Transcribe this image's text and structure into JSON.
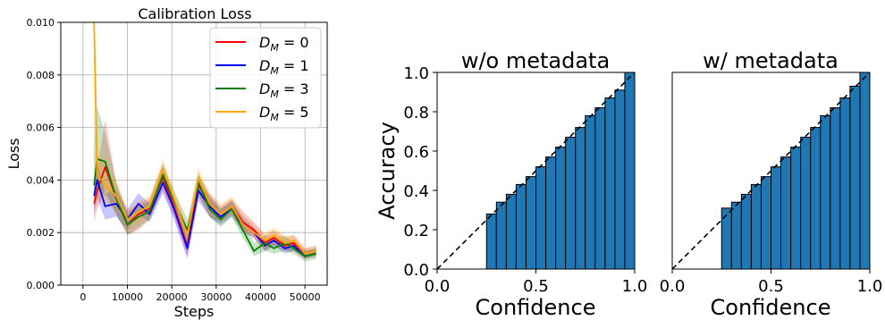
{
  "chart_data": [
    {
      "type": "line",
      "title": "Calibration Loss",
      "xlabel": "Steps",
      "ylabel": "Loss",
      "xlim": [
        -5000,
        55000
      ],
      "ylim": [
        0,
        0.01
      ],
      "xticks": [
        0,
        10000,
        20000,
        30000,
        40000,
        50000
      ],
      "xtick_labels": [
        "0",
        "10000",
        "20000",
        "30000",
        "40000",
        "50000"
      ],
      "yticks": [
        0,
        0.002,
        0.004,
        0.006,
        0.008,
        0.01
      ],
      "ytick_labels": [
        "0.000",
        "0.002",
        "0.004",
        "0.006",
        "0.008",
        "0.010"
      ],
      "grid": true,
      "legend_position": "top-right",
      "x": [
        2500,
        3200,
        5000,
        7500,
        10000,
        12500,
        15000,
        18000,
        20500,
        23500,
        26000,
        28500,
        31000,
        33500,
        36000,
        38500,
        41000,
        43000,
        45500,
        47500,
        50000,
        52500
      ],
      "series": [
        {
          "name": "D_M=0",
          "legend_label": "D_M = 0",
          "color": "#ff0000",
          "values": [
            0.0031,
            0.0036,
            0.0045,
            0.0033,
            0.0023,
            0.0027,
            0.0029,
            0.0041,
            0.003,
            0.0015,
            0.0038,
            0.0031,
            0.0027,
            0.003,
            0.0024,
            0.0021,
            0.0016,
            0.0018,
            0.0015,
            0.0016,
            0.0012,
            0.0013
          ],
          "band_low": [
            0.0024,
            0.0029,
            0.0036,
            0.0027,
            0.0019,
            0.0021,
            0.0025,
            0.0036,
            0.0026,
            0.0011,
            0.0034,
            0.0026,
            0.0024,
            0.0027,
            0.0021,
            0.0018,
            0.0013,
            0.0015,
            0.0013,
            0.0013,
            0.001,
            0.0011
          ],
          "band_high": [
            0.0038,
            0.0044,
            0.0063,
            0.0039,
            0.0028,
            0.0031,
            0.0033,
            0.0046,
            0.0034,
            0.0021,
            0.0042,
            0.0035,
            0.003,
            0.0033,
            0.0028,
            0.0024,
            0.0019,
            0.0021,
            0.0018,
            0.0019,
            0.0014,
            0.0015
          ]
        },
        {
          "name": "D_M=1",
          "legend_label": "D_M = 1",
          "color": "#0000ff",
          "values": [
            0.0034,
            0.004,
            0.003,
            0.0031,
            0.0025,
            0.0031,
            0.0027,
            0.0039,
            0.0029,
            0.0014,
            0.0036,
            0.003,
            0.0026,
            0.0029,
            0.0023,
            0.002,
            0.0015,
            0.0017,
            0.0014,
            0.0015,
            0.0011,
            0.0012
          ],
          "band_low": [
            0.0027,
            0.0033,
            0.0025,
            0.0026,
            0.0021,
            0.0027,
            0.0024,
            0.0035,
            0.0025,
            0.001,
            0.0032,
            0.0026,
            0.0023,
            0.0026,
            0.002,
            0.0018,
            0.0013,
            0.0015,
            0.0012,
            0.0013,
            0.001,
            0.0011
          ],
          "band_high": [
            0.0041,
            0.0047,
            0.0035,
            0.0036,
            0.0029,
            0.0035,
            0.0031,
            0.0043,
            0.0033,
            0.0018,
            0.004,
            0.0034,
            0.0029,
            0.0032,
            0.0026,
            0.0022,
            0.0017,
            0.0019,
            0.0016,
            0.0017,
            0.0013,
            0.0014
          ]
        },
        {
          "name": "D_M=3",
          "legend_label": "D_M = 3",
          "color": "#008000",
          "values": [
            0.0038,
            0.0048,
            0.0047,
            0.0033,
            0.0023,
            0.0026,
            0.0028,
            0.0042,
            0.0032,
            0.0021,
            0.0039,
            0.0029,
            0.0025,
            0.0029,
            0.0021,
            0.0013,
            0.0016,
            0.0014,
            0.0016,
            0.0014,
            0.0011,
            0.0012
          ],
          "band_low": [
            0.0029,
            0.0036,
            0.0034,
            0.0027,
            0.0019,
            0.0022,
            0.0025,
            0.0038,
            0.0028,
            0.0017,
            0.0035,
            0.0026,
            0.0022,
            0.0026,
            0.0018,
            0.0011,
            0.0013,
            0.0012,
            0.0013,
            0.0012,
            0.0009,
            0.001
          ],
          "band_high": [
            0.0055,
            0.0068,
            0.0058,
            0.0039,
            0.0027,
            0.003,
            0.0032,
            0.0046,
            0.0036,
            0.0025,
            0.0043,
            0.0033,
            0.0029,
            0.0032,
            0.0025,
            0.0016,
            0.0019,
            0.0017,
            0.0019,
            0.0016,
            0.0013,
            0.0014
          ]
        },
        {
          "name": "D_M=5",
          "legend_label": "D_M = 5",
          "color": "#ffa500",
          "values": [
            0.01,
            0.0042,
            0.0038,
            0.0034,
            0.0025,
            0.0028,
            0.003,
            0.0044,
            0.0033,
            0.0019,
            0.0041,
            0.0031,
            0.0027,
            0.003,
            0.0023,
            0.002,
            0.0017,
            0.0019,
            0.0016,
            0.0017,
            0.0012,
            0.0013
          ],
          "band_low": [
            0.0028,
            0.0033,
            0.0031,
            0.0028,
            0.0021,
            0.0024,
            0.0026,
            0.004,
            0.0029,
            0.0015,
            0.0037,
            0.0027,
            0.0024,
            0.0027,
            0.002,
            0.0018,
            0.0014,
            0.0016,
            0.0014,
            0.0015,
            0.001,
            0.0011
          ],
          "band_high": [
            0.01,
            0.005,
            0.0045,
            0.004,
            0.0029,
            0.0032,
            0.0034,
            0.0048,
            0.0037,
            0.0023,
            0.0045,
            0.0035,
            0.0031,
            0.0034,
            0.0027,
            0.0023,
            0.002,
            0.0022,
            0.0019,
            0.0019,
            0.0014,
            0.0015
          ]
        }
      ]
    },
    {
      "type": "bar",
      "title": "w/o metadata",
      "xlabel": "Confidence",
      "ylabel": "Accuracy",
      "xlim": [
        0,
        1
      ],
      "ylim": [
        0,
        1
      ],
      "xticks": [
        0,
        0.5,
        1
      ],
      "xtick_labels": [
        "0.0",
        "0.5",
        "1.0"
      ],
      "yticks": [
        0,
        0.2,
        0.4,
        0.6,
        0.8,
        1
      ],
      "ytick_labels": [
        "0.0",
        "0.2",
        "0.4",
        "0.6",
        "0.8",
        "1.0"
      ],
      "grid": false,
      "bar_color": "#1f77b4",
      "diagonal": "dashed",
      "bin_edges": [
        0.25,
        0.3,
        0.35,
        0.4,
        0.45,
        0.5,
        0.55,
        0.6,
        0.65,
        0.7,
        0.75,
        0.8,
        0.85,
        0.9,
        0.95,
        1.0
      ],
      "values": [
        0.28,
        0.34,
        0.38,
        0.43,
        0.47,
        0.52,
        0.57,
        0.62,
        0.67,
        0.72,
        0.78,
        0.82,
        0.87,
        0.91,
        1.0
      ]
    },
    {
      "type": "bar",
      "title": "w/ metadata",
      "xlabel": "Confidence",
      "ylabel": "",
      "xlim": [
        0,
        1
      ],
      "ylim": [
        0,
        1
      ],
      "xticks": [
        0,
        0.5,
        1
      ],
      "xtick_labels": [
        "0.0",
        "0.5",
        "1.0"
      ],
      "grid": false,
      "bar_color": "#1f77b4",
      "diagonal": "dashed",
      "bin_edges": [
        0.25,
        0.3,
        0.35,
        0.4,
        0.45,
        0.5,
        0.55,
        0.6,
        0.65,
        0.7,
        0.75,
        0.8,
        0.85,
        0.9,
        0.95,
        1.0
      ],
      "values": [
        0.31,
        0.34,
        0.38,
        0.43,
        0.47,
        0.52,
        0.57,
        0.62,
        0.67,
        0.72,
        0.78,
        0.82,
        0.87,
        0.93,
        1.0
      ]
    }
  ]
}
